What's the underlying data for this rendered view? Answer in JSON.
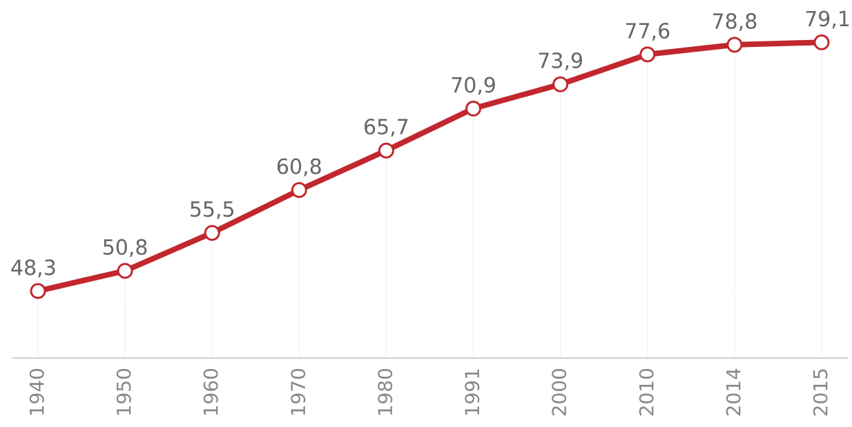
{
  "chart_data": {
    "type": "line",
    "categories": [
      "1940",
      "1950",
      "1960",
      "1970",
      "1980",
      "1991",
      "2000",
      "2010",
      "2014",
      "2015"
    ],
    "values": [
      48.3,
      50.8,
      55.5,
      60.8,
      65.7,
      70.9,
      73.9,
      77.6,
      78.8,
      79.1
    ],
    "value_labels": [
      "48,3",
      "50,8",
      "55,5",
      "60,8",
      "65,7",
      "70,9",
      "73,9",
      "77,6",
      "78,8",
      "79,1"
    ],
    "color": "#c1272d",
    "ylim": [
      40,
      84
    ]
  }
}
